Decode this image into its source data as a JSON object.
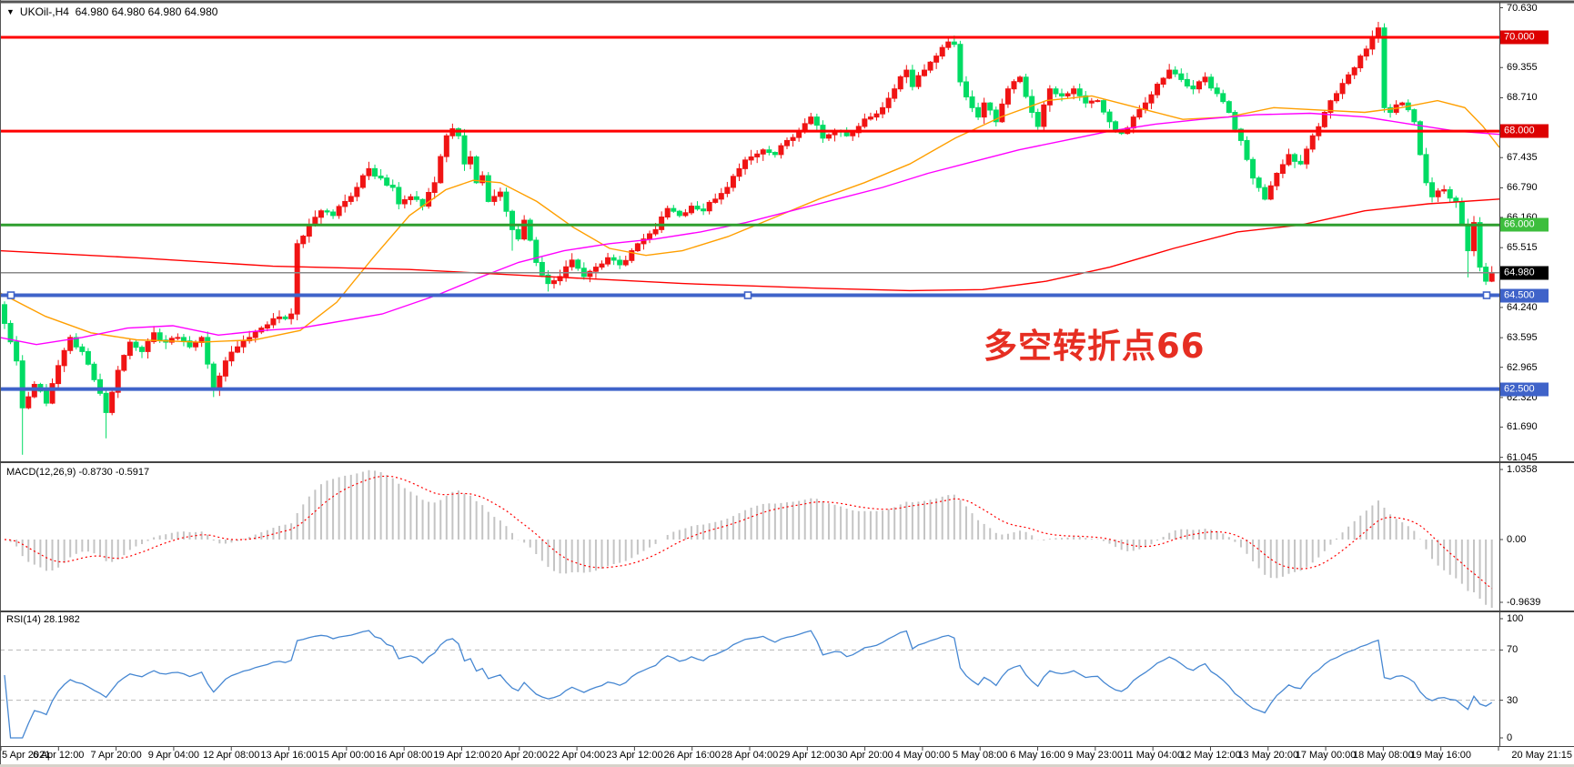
{
  "ui": {
    "title": {
      "dropdown_icon": "▼",
      "symbol": "UKOil-,H4",
      "quotes": "64.980 64.980 64.980 64.980"
    },
    "macd_label": "MACD(12,26,9) -0.8730 -0.5917",
    "rsi_label": "RSI(14) 28.1982"
  },
  "chart_data": {
    "type": "candlestick",
    "symbol": "UKOil-",
    "timeframe": "H4",
    "current_price": 64.98,
    "ohlc_display": [
      64.98,
      64.98,
      64.98,
      64.98
    ],
    "annotation": {
      "text": "多空转折点66",
      "color": "#e62e22"
    },
    "candle_colors": {
      "up": "#f01414",
      "down": "#00dc64",
      "up_note": "red = bullish (CN convention)",
      "down_note": "green = bearish"
    },
    "price_axis_ticks": [
      "70.630",
      "69.355",
      "68.710",
      "67.435",
      "66.790",
      "66.160",
      "65.515",
      "64.240",
      "63.595",
      "62.965",
      "62.320",
      "61.690",
      "61.045"
    ],
    "price_badges": [
      {
        "label": "70.000",
        "price": 70.0,
        "bg": "#dd0000"
      },
      {
        "label": "68.000",
        "price": 68.0,
        "bg": "#dd0000"
      },
      {
        "label": "66.000",
        "price": 66.0,
        "bg": "#3dbe3d"
      },
      {
        "label": "64.980",
        "price": 64.98,
        "bg": "#000000"
      },
      {
        "label": "64.500",
        "price": 64.5,
        "bg": "#3f63c9"
      },
      {
        "label": "62.500",
        "price": 62.5,
        "bg": "#3f63c9"
      }
    ],
    "horizontal_lines": [
      {
        "price": 70.0,
        "color": "#ff0000",
        "width": 3,
        "selected": false
      },
      {
        "price": 68.0,
        "color": "#ff0000",
        "width": 3,
        "selected": false
      },
      {
        "price": 66.0,
        "color": "#2e9e2e",
        "width": 3,
        "selected": false
      },
      {
        "price": 64.98,
        "color": "#8a8a8a",
        "width": 1.5,
        "selected": false,
        "role": "current-price"
      },
      {
        "price": 64.5,
        "color": "#3f63c9",
        "width": 4,
        "selected": true
      },
      {
        "price": 62.5,
        "color": "#3f63c9",
        "width": 4,
        "selected": false
      }
    ],
    "time_axis_labels": [
      "5 Apr 2021",
      "6 Apr 12:00",
      "7 Apr 20:00",
      "9 Apr 04:00",
      "12 Apr 08:00",
      "13 Apr 16:00",
      "15 Apr 00:00",
      "16 Apr 08:00",
      "19 Apr 12:00",
      "20 Apr 20:00",
      "22 Apr 04:00",
      "23 Apr 12:00",
      "26 Apr 16:00",
      "28 Apr 04:00",
      "29 Apr 12:00",
      "30 Apr 20:00",
      "4 May 00:00",
      "5 May 08:00",
      "6 May 16:00",
      "9 May 23:00",
      "11 May 04:00",
      "12 May 12:00",
      "13 May 20:00",
      "17 May 00:00",
      "18 May 08:00",
      "19 May 16:00",
      "20 May 21:15"
    ],
    "bars": 250,
    "first_open": 64.3,
    "close_waypoints": [
      [
        0,
        63.9
      ],
      [
        2,
        63.1
      ],
      [
        3,
        62.1
      ],
      [
        5,
        62.6
      ],
      [
        7,
        62.2
      ],
      [
        9,
        63.0
      ],
      [
        11,
        63.6
      ],
      [
        13,
        63.3
      ],
      [
        15,
        62.7
      ],
      [
        17,
        62.0
      ],
      [
        19,
        62.9
      ],
      [
        21,
        63.5
      ],
      [
        23,
        63.3
      ],
      [
        25,
        63.7
      ],
      [
        27,
        63.5
      ],
      [
        29,
        63.6
      ],
      [
        31,
        63.4
      ],
      [
        33,
        63.6
      ],
      [
        35,
        62.5
      ],
      [
        37,
        63.1
      ],
      [
        39,
        63.4
      ],
      [
        41,
        63.6
      ],
      [
        43,
        63.8
      ],
      [
        45,
        64.0
      ],
      [
        47,
        64.0
      ],
      [
        48,
        64.1
      ],
      [
        49,
        65.6
      ],
      [
        51,
        66.0
      ],
      [
        53,
        66.3
      ],
      [
        55,
        66.2
      ],
      [
        57,
        66.5
      ],
      [
        59,
        66.8
      ],
      [
        61,
        67.2
      ],
      [
        63,
        67.0
      ],
      [
        65,
        66.8
      ],
      [
        66,
        66.45
      ],
      [
        68,
        66.6
      ],
      [
        70,
        66.4
      ],
      [
        72,
        66.9
      ],
      [
        74,
        67.9
      ],
      [
        75,
        68.05
      ],
      [
        76,
        67.9
      ],
      [
        77,
        67.3
      ],
      [
        78,
        67.45
      ],
      [
        79,
        66.9
      ],
      [
        80,
        67.05
      ],
      [
        81,
        66.5
      ],
      [
        83,
        66.7
      ],
      [
        85,
        65.9
      ],
      [
        86,
        65.7
      ],
      [
        87,
        66.1
      ],
      [
        89,
        65.2
      ],
      [
        91,
        64.75
      ],
      [
        93,
        64.9
      ],
      [
        95,
        65.25
      ],
      [
        97,
        64.9
      ],
      [
        99,
        65.1
      ],
      [
        101,
        65.3
      ],
      [
        103,
        65.15
      ],
      [
        105,
        65.45
      ],
      [
        107,
        65.7
      ],
      [
        109,
        65.9
      ],
      [
        111,
        66.35
      ],
      [
        113,
        66.2
      ],
      [
        115,
        66.4
      ],
      [
        117,
        66.3
      ],
      [
        119,
        66.55
      ],
      [
        121,
        66.8
      ],
      [
        123,
        67.2
      ],
      [
        125,
        67.45
      ],
      [
        127,
        67.6
      ],
      [
        129,
        67.5
      ],
      [
        131,
        67.8
      ],
      [
        133,
        68.0
      ],
      [
        135,
        68.3
      ],
      [
        137,
        67.85
      ],
      [
        139,
        68.0
      ],
      [
        141,
        67.9
      ],
      [
        143,
        68.1
      ],
      [
        145,
        68.3
      ],
      [
        147,
        68.5
      ],
      [
        149,
        68.9
      ],
      [
        151,
        69.3
      ],
      [
        152,
        68.95
      ],
      [
        154,
        69.3
      ],
      [
        156,
        69.6
      ],
      [
        158,
        69.9
      ],
      [
        159,
        69.85
      ],
      [
        160,
        69.05
      ],
      [
        162,
        68.5
      ],
      [
        163,
        68.3
      ],
      [
        164,
        68.6
      ],
      [
        166,
        68.2
      ],
      [
        168,
        68.9
      ],
      [
        170,
        69.15
      ],
      [
        172,
        68.4
      ],
      [
        173,
        68.1
      ],
      [
        175,
        68.9
      ],
      [
        177,
        68.75
      ],
      [
        179,
        68.9
      ],
      [
        181,
        68.6
      ],
      [
        183,
        68.65
      ],
      [
        185,
        68.2
      ],
      [
        187,
        67.95
      ],
      [
        189,
        68.3
      ],
      [
        191,
        68.6
      ],
      [
        193,
        69.0
      ],
      [
        195,
        69.3
      ],
      [
        197,
        69.1
      ],
      [
        199,
        68.9
      ],
      [
        201,
        69.15
      ],
      [
        203,
        68.8
      ],
      [
        205,
        68.4
      ],
      [
        207,
        67.8
      ],
      [
        209,
        67.0
      ],
      [
        211,
        66.55
      ],
      [
        213,
        67.1
      ],
      [
        215,
        67.5
      ],
      [
        217,
        67.3
      ],
      [
        219,
        67.9
      ],
      [
        221,
        68.4
      ],
      [
        223,
        68.8
      ],
      [
        225,
        69.2
      ],
      [
        227,
        69.6
      ],
      [
        229,
        70.0
      ],
      [
        230,
        70.2
      ],
      [
        231,
        68.5
      ],
      [
        232,
        68.4
      ],
      [
        234,
        68.6
      ],
      [
        236,
        68.2
      ],
      [
        237,
        67.5
      ],
      [
        238,
        66.9
      ],
      [
        239,
        66.6
      ],
      [
        241,
        66.75
      ],
      [
        243,
        66.5
      ],
      [
        244,
        66.0
      ],
      [
        245,
        65.45
      ],
      [
        246,
        66.05
      ],
      [
        247,
        65.1
      ],
      [
        248,
        64.8
      ],
      [
        249,
        64.98
      ]
    ],
    "wick_overrides": {
      "3": {
        "low": 61.1
      },
      "17": {
        "low": 61.45
      },
      "35": {
        "low": 62.33
      },
      "75": {
        "high": 68.16
      },
      "85": {
        "low": 65.45
      },
      "91": {
        "low": 64.58
      },
      "158": {
        "high": 69.98
      },
      "230": {
        "high": 70.33
      },
      "245": {
        "low": 64.88
      },
      "248": {
        "low": 64.72
      },
      "249": {
        "low": 64.78
      }
    },
    "moving_averages": [
      {
        "name": "ma-fast-orange",
        "color": "#ff9f00",
        "points": [
          [
            0,
            64.55
          ],
          [
            50,
            64.05
          ],
          [
            100,
            63.7
          ],
          [
            150,
            63.55
          ],
          [
            220,
            63.5
          ],
          [
            280,
            63.55
          ],
          [
            330,
            63.75
          ],
          [
            370,
            64.35
          ],
          [
            410,
            65.3
          ],
          [
            450,
            66.2
          ],
          [
            490,
            66.75
          ],
          [
            520,
            66.95
          ],
          [
            550,
            66.9
          ],
          [
            590,
            66.5
          ],
          [
            630,
            65.95
          ],
          [
            670,
            65.5
          ],
          [
            710,
            65.35
          ],
          [
            750,
            65.45
          ],
          [
            800,
            65.75
          ],
          [
            850,
            66.15
          ],
          [
            900,
            66.55
          ],
          [
            950,
            66.9
          ],
          [
            1000,
            67.3
          ],
          [
            1050,
            67.85
          ],
          [
            1100,
            68.3
          ],
          [
            1150,
            68.65
          ],
          [
            1200,
            68.75
          ],
          [
            1250,
            68.5
          ],
          [
            1300,
            68.25
          ],
          [
            1350,
            68.3
          ],
          [
            1400,
            68.5
          ],
          [
            1450,
            68.45
          ],
          [
            1500,
            68.4
          ],
          [
            1540,
            68.5
          ],
          [
            1580,
            68.65
          ],
          [
            1610,
            68.5
          ],
          [
            1630,
            68.1
          ],
          [
            1648,
            67.65
          ]
        ]
      },
      {
        "name": "ma-mid-magenta",
        "color": "#ff00ff",
        "points": [
          [
            0,
            63.6
          ],
          [
            40,
            63.45
          ],
          [
            90,
            63.6
          ],
          [
            140,
            63.8
          ],
          [
            190,
            63.85
          ],
          [
            240,
            63.65
          ],
          [
            290,
            63.75
          ],
          [
            330,
            63.8
          ],
          [
            360,
            63.9
          ],
          [
            420,
            64.1
          ],
          [
            480,
            64.5
          ],
          [
            530,
            64.9
          ],
          [
            570,
            65.2
          ],
          [
            620,
            65.45
          ],
          [
            670,
            65.6
          ],
          [
            720,
            65.7
          ],
          [
            770,
            65.85
          ],
          [
            820,
            66.05
          ],
          [
            870,
            66.3
          ],
          [
            920,
            66.55
          ],
          [
            970,
            66.8
          ],
          [
            1020,
            67.1
          ],
          [
            1070,
            67.35
          ],
          [
            1120,
            67.6
          ],
          [
            1170,
            67.8
          ],
          [
            1220,
            68.0
          ],
          [
            1270,
            68.15
          ],
          [
            1320,
            68.25
          ],
          [
            1380,
            68.35
          ],
          [
            1440,
            68.38
          ],
          [
            1500,
            68.3
          ],
          [
            1550,
            68.15
          ],
          [
            1600,
            68.0
          ],
          [
            1648,
            67.93
          ]
        ]
      },
      {
        "name": "ma-slow-red",
        "color": "#ff0000",
        "points": [
          [
            0,
            65.45
          ],
          [
            150,
            65.3
          ],
          [
            300,
            65.12
          ],
          [
            450,
            65.05
          ],
          [
            600,
            64.9
          ],
          [
            750,
            64.75
          ],
          [
            900,
            64.65
          ],
          [
            1000,
            64.6
          ],
          [
            1080,
            64.62
          ],
          [
            1150,
            64.8
          ],
          [
            1220,
            65.1
          ],
          [
            1290,
            65.5
          ],
          [
            1360,
            65.85
          ],
          [
            1430,
            66.0
          ],
          [
            1500,
            66.3
          ],
          [
            1570,
            66.45
          ],
          [
            1648,
            66.55
          ]
        ]
      }
    ],
    "indicators": {
      "macd": {
        "name": "MACD",
        "params": [
          12,
          26,
          9
        ],
        "main_value": -0.873,
        "signal_value": -0.5917,
        "axis_labels": [
          "1.0358",
          "0.00",
          "-0.9639"
        ],
        "histogram_color": "#c4c4c4",
        "signal_color": "#ff0000"
      },
      "rsi": {
        "name": "RSI",
        "period": 14,
        "value": 28.1982,
        "axis_labels": [
          "100",
          "70",
          "30",
          "0"
        ],
        "levels": [
          70,
          30
        ],
        "line_color": "#4687d2",
        "level_color": "#b8b8b8"
      }
    }
  }
}
